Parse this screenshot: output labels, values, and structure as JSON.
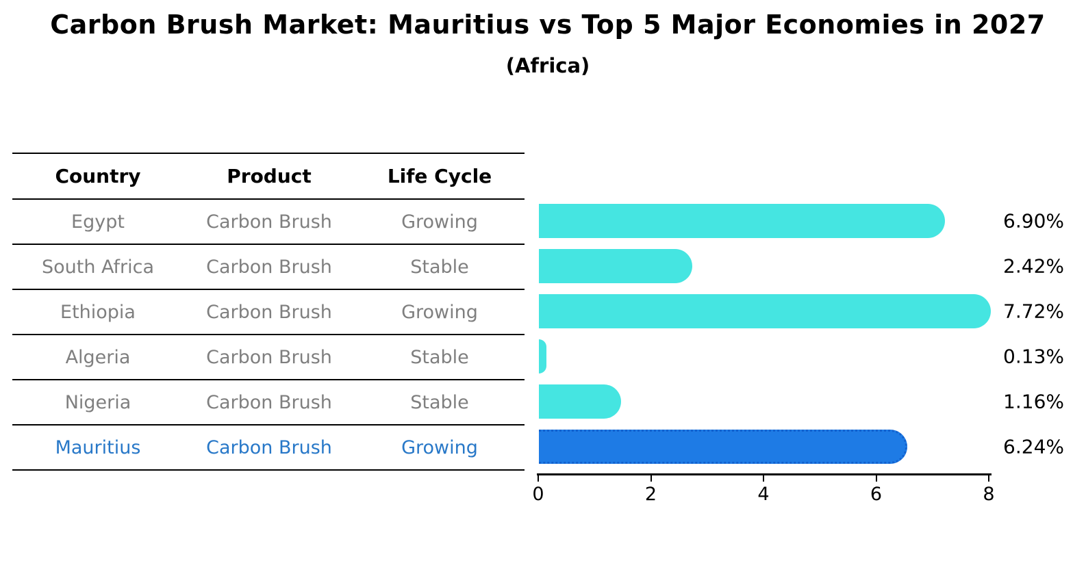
{
  "title": "Carbon Brush Market: Mauritius vs Top 5 Major Economies in 2027",
  "subtitle": "(Africa)",
  "table": {
    "headers": [
      "Country",
      "Product",
      "Life Cycle"
    ],
    "rows": [
      {
        "country": "Egypt",
        "product": "Carbon Brush",
        "life_cycle": "Growing",
        "highlight": false
      },
      {
        "country": "South Africa",
        "product": "Carbon Brush",
        "life_cycle": "Stable",
        "highlight": false
      },
      {
        "country": "Ethiopia",
        "product": "Carbon Brush",
        "life_cycle": "Growing",
        "highlight": false
      },
      {
        "country": "Algeria",
        "product": "Carbon Brush",
        "life_cycle": "Stable",
        "highlight": false
      },
      {
        "country": "Nigeria",
        "product": "Carbon Brush",
        "life_cycle": "Stable",
        "highlight": false
      },
      {
        "country": "Mauritius",
        "product": "Carbon Brush",
        "life_cycle": "Growing",
        "highlight": true
      }
    ]
  },
  "chart_data": {
    "type": "bar",
    "orientation": "horizontal",
    "categories": [
      "Egypt",
      "South Africa",
      "Ethiopia",
      "Algeria",
      "Nigeria",
      "Mauritius"
    ],
    "values": [
      6.9,
      2.42,
      7.72,
      0.13,
      1.16,
      6.24
    ],
    "value_labels": [
      "6.90%",
      "2.42%",
      "7.72%",
      "0.13%",
      "1.16%",
      "6.24%"
    ],
    "x_ticks": [
      "0",
      "2",
      "4",
      "6",
      "8"
    ],
    "xlim": [
      0,
      8
    ],
    "grid": false,
    "legend": "none",
    "highlight_index": 5,
    "colors": {
      "bar": "#45E5E1",
      "highlight_bar": "#1E7BE5",
      "highlight_border": "#1261CE",
      "highlight_text": "#2878C8",
      "row_text": "#7f7f7f",
      "header_text": "#000000",
      "axis": "#000000"
    }
  }
}
